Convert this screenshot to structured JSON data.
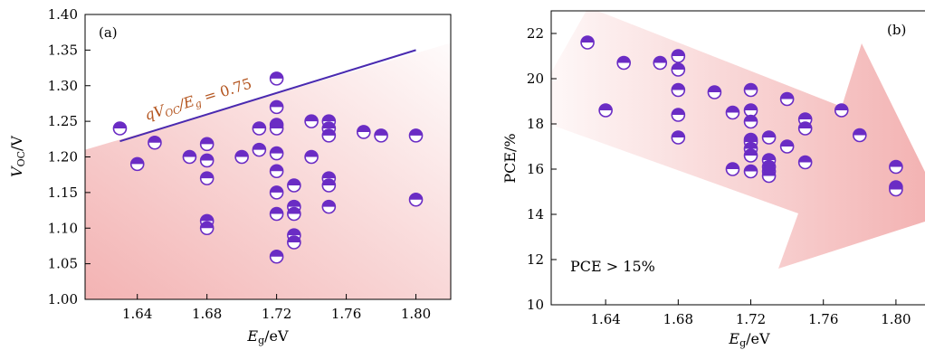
{
  "chart_data": [
    {
      "type": "scatter",
      "panel_label": "(a)",
      "xlabel": {
        "main": "E",
        "sub": "g",
        "unit": "/eV"
      },
      "ylabel": {
        "main": "V",
        "sub": "OC",
        "unit": "/V"
      },
      "xlim": [
        1.61,
        1.82
      ],
      "ylim": [
        1.0,
        1.4
      ],
      "x_ticks": [
        1.64,
        1.68,
        1.72,
        1.76,
        1.8
      ],
      "x_tick_labels": [
        "1.64",
        "1.68",
        "1.72",
        "1.76",
        "1.80"
      ],
      "y_ticks": [
        1.0,
        1.05,
        1.1,
        1.15,
        1.2,
        1.25,
        1.3,
        1.35,
        1.4
      ],
      "y_tick_labels": [
        "1.00",
        "1.05",
        "1.10",
        "1.15",
        "1.20",
        "1.25",
        "1.30",
        "1.35",
        "1.40"
      ],
      "grid": false,
      "marker_color": "#6a2cc4",
      "shade_color": "#f3b3b3",
      "annotation": {
        "text_prefix": "qV",
        "text_sub": "OC",
        "text_mid": "/E",
        "text_sub2": "g",
        "text_suffix": " = 0.75",
        "color": "#b3541e",
        "line_color": "#4a2ab0",
        "line": {
          "x": [
            1.63,
            1.8
          ],
          "y": [
            1.222,
            1.35
          ]
        }
      },
      "points": [
        {
          "x": 1.63,
          "y": 1.24
        },
        {
          "x": 1.64,
          "y": 1.19
        },
        {
          "x": 1.65,
          "y": 1.22
        },
        {
          "x": 1.67,
          "y": 1.2
        },
        {
          "x": 1.68,
          "y": 1.218
        },
        {
          "x": 1.68,
          "y": 1.195
        },
        {
          "x": 1.68,
          "y": 1.17
        },
        {
          "x": 1.68,
          "y": 1.11
        },
        {
          "x": 1.68,
          "y": 1.1
        },
        {
          "x": 1.7,
          "y": 1.2
        },
        {
          "x": 1.71,
          "y": 1.21
        },
        {
          "x": 1.71,
          "y": 1.24
        },
        {
          "x": 1.72,
          "y": 1.31
        },
        {
          "x": 1.72,
          "y": 1.27
        },
        {
          "x": 1.72,
          "y": 1.245
        },
        {
          "x": 1.72,
          "y": 1.24
        },
        {
          "x": 1.72,
          "y": 1.205
        },
        {
          "x": 1.72,
          "y": 1.18
        },
        {
          "x": 1.72,
          "y": 1.15
        },
        {
          "x": 1.72,
          "y": 1.12
        },
        {
          "x": 1.72,
          "y": 1.06
        },
        {
          "x": 1.73,
          "y": 1.16
        },
        {
          "x": 1.73,
          "y": 1.13
        },
        {
          "x": 1.73,
          "y": 1.12
        },
        {
          "x": 1.73,
          "y": 1.09
        },
        {
          "x": 1.73,
          "y": 1.08
        },
        {
          "x": 1.74,
          "y": 1.25
        },
        {
          "x": 1.74,
          "y": 1.2
        },
        {
          "x": 1.75,
          "y": 1.25
        },
        {
          "x": 1.75,
          "y": 1.24
        },
        {
          "x": 1.75,
          "y": 1.23
        },
        {
          "x": 1.75,
          "y": 1.17
        },
        {
          "x": 1.75,
          "y": 1.16
        },
        {
          "x": 1.75,
          "y": 1.13
        },
        {
          "x": 1.77,
          "y": 1.235
        },
        {
          "x": 1.78,
          "y": 1.23
        },
        {
          "x": 1.8,
          "y": 1.23
        },
        {
          "x": 1.8,
          "y": 1.14
        }
      ]
    },
    {
      "type": "scatter",
      "panel_label": "(b)",
      "xlabel": {
        "main": "E",
        "sub": "g",
        "unit": "/eV"
      },
      "ylabel": {
        "main": "PCE/%",
        "sub": "",
        "unit": ""
      },
      "xlim": [
        1.61,
        1.82
      ],
      "ylim": [
        10,
        23
      ],
      "x_ticks": [
        1.64,
        1.68,
        1.72,
        1.76,
        1.8
      ],
      "x_tick_labels": [
        "1.64",
        "1.68",
        "1.72",
        "1.76",
        "1.80"
      ],
      "y_ticks": [
        10,
        12,
        14,
        16,
        18,
        20,
        22
      ],
      "y_tick_labels": [
        "10",
        "12",
        "14",
        "16",
        "18",
        "20",
        "22"
      ],
      "grid": false,
      "marker_color": "#6a2cc4",
      "shade_color": "#f3b3b3",
      "annotation": {
        "text": "PCE > 15%",
        "color": "#b3541e"
      },
      "points": [
        {
          "x": 1.63,
          "y": 21.6
        },
        {
          "x": 1.64,
          "y": 18.6
        },
        {
          "x": 1.65,
          "y": 20.7
        },
        {
          "x": 1.67,
          "y": 20.7
        },
        {
          "x": 1.68,
          "y": 21.0
        },
        {
          "x": 1.68,
          "y": 20.4
        },
        {
          "x": 1.68,
          "y": 19.5
        },
        {
          "x": 1.68,
          "y": 18.4
        },
        {
          "x": 1.68,
          "y": 17.4
        },
        {
          "x": 1.7,
          "y": 19.4
        },
        {
          "x": 1.71,
          "y": 18.5
        },
        {
          "x": 1.71,
          "y": 16.0
        },
        {
          "x": 1.72,
          "y": 19.5
        },
        {
          "x": 1.72,
          "y": 18.6
        },
        {
          "x": 1.72,
          "y": 18.1
        },
        {
          "x": 1.72,
          "y": 17.3
        },
        {
          "x": 1.72,
          "y": 17.2
        },
        {
          "x": 1.72,
          "y": 16.9
        },
        {
          "x": 1.72,
          "y": 16.6
        },
        {
          "x": 1.72,
          "y": 15.9
        },
        {
          "x": 1.73,
          "y": 17.4
        },
        {
          "x": 1.73,
          "y": 16.4
        },
        {
          "x": 1.73,
          "y": 16.1
        },
        {
          "x": 1.73,
          "y": 15.9
        },
        {
          "x": 1.73,
          "y": 15.7
        },
        {
          "x": 1.74,
          "y": 19.1
        },
        {
          "x": 1.74,
          "y": 17.0
        },
        {
          "x": 1.75,
          "y": 18.2
        },
        {
          "x": 1.75,
          "y": 17.8
        },
        {
          "x": 1.75,
          "y": 16.3
        },
        {
          "x": 1.77,
          "y": 18.6
        },
        {
          "x": 1.78,
          "y": 17.5
        },
        {
          "x": 1.8,
          "y": 16.1
        },
        {
          "x": 1.8,
          "y": 15.2
        },
        {
          "x": 1.8,
          "y": 15.1
        }
      ]
    }
  ]
}
